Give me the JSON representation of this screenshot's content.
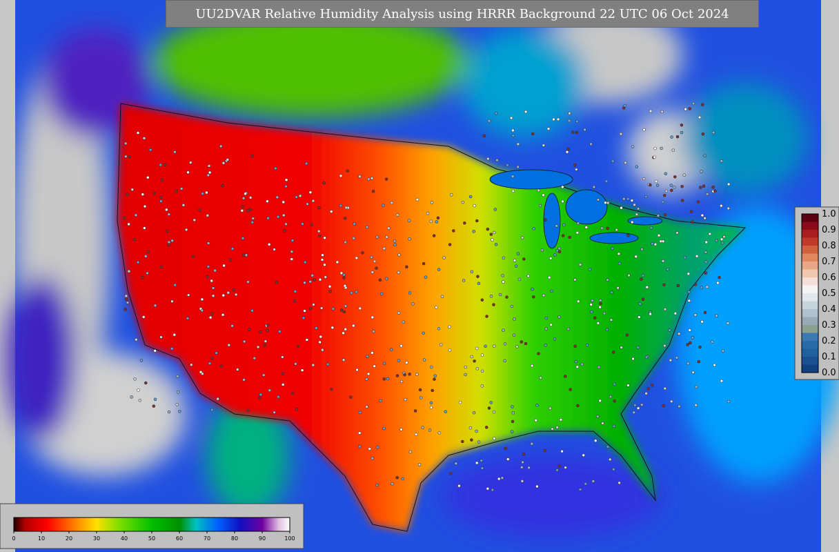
{
  "title": "UU2DVAR Relative Humidity Analysis using HRRR Background 22 UTC 06 Oct 2024",
  "humidity_colorbar": {
    "ticks": [
      "0",
      "10",
      "20",
      "30",
      "40",
      "50",
      "60",
      "70",
      "80",
      "90",
      "100"
    ]
  },
  "observation_colorbar": {
    "ticks": [
      "1.0",
      "0.9",
      "0.8",
      "0.7",
      "0.6",
      "0.5",
      "0.4",
      "0.3",
      "0.2",
      "0.1",
      "0.0"
    ]
  }
}
